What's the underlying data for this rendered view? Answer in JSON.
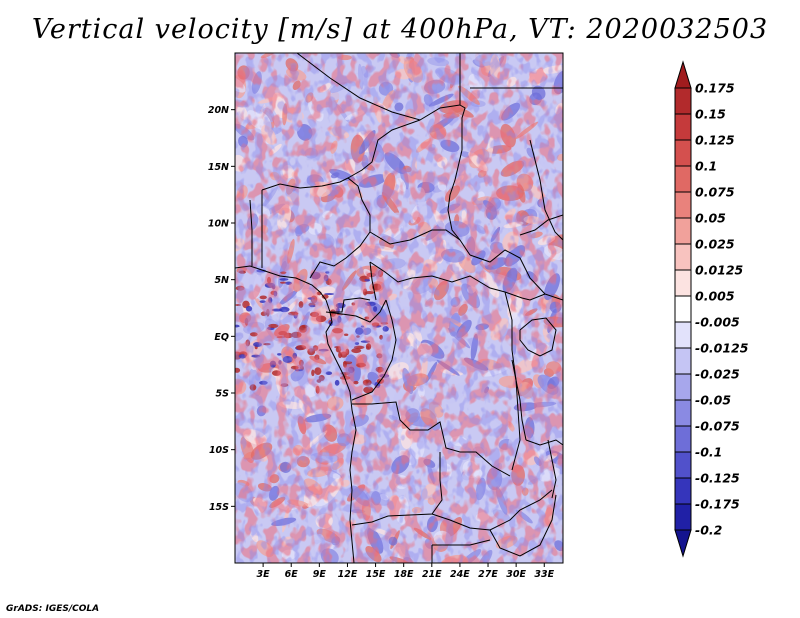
{
  "title": "Vertical velocity [m/s] at 400hPa, VT: 2020032503",
  "credit": "GrADS: IGES/COLA",
  "map": {
    "variable": "Vertical velocity",
    "units": "m/s",
    "level": "400hPa",
    "valid_time": "2020032503",
    "lon_range": [
      0,
      35
    ],
    "lat_range": [
      -20,
      25
    ],
    "lat_ticks": [
      {
        "value": 20,
        "label": "20N"
      },
      {
        "value": 15,
        "label": "15N"
      },
      {
        "value": 10,
        "label": "10N"
      },
      {
        "value": 5,
        "label": "5N"
      },
      {
        "value": 0,
        "label": "EQ"
      },
      {
        "value": -5,
        "label": "5S"
      },
      {
        "value": -10,
        "label": "10S"
      },
      {
        "value": -15,
        "label": "15S"
      }
    ],
    "lon_ticks": [
      {
        "value": 3,
        "label": "3E"
      },
      {
        "value": 6,
        "label": "6E"
      },
      {
        "value": 9,
        "label": "9E"
      },
      {
        "value": 12,
        "label": "12E"
      },
      {
        "value": 15,
        "label": "15E"
      },
      {
        "value": 18,
        "label": "18E"
      },
      {
        "value": 21,
        "label": "21E"
      },
      {
        "value": 24,
        "label": "24E"
      },
      {
        "value": 27,
        "label": "27E"
      },
      {
        "value": 30,
        "label": "30E"
      },
      {
        "value": 33,
        "label": "33E"
      }
    ]
  },
  "colorbar": {
    "levels": [
      "0.175",
      "0.15",
      "0.125",
      "0.1",
      "0.075",
      "0.05",
      "0.025",
      "0.0125",
      "0.005",
      "-0.005",
      "-0.0125",
      "-0.025",
      "-0.05",
      "-0.075",
      "-0.1",
      "-0.125",
      "-0.175",
      "-0.2"
    ],
    "colors": [
      "#a01c1e",
      "#b22a2c",
      "#c53a3b",
      "#d4504e",
      "#e06964",
      "#e9827c",
      "#f1a19b",
      "#f8c3bf",
      "#fce3e1",
      "#ffffff",
      "#e2e2fb",
      "#c5c5f4",
      "#a7a7ec",
      "#8a8ae3",
      "#6e6ed8",
      "#5151cb",
      "#3535bb",
      "#2020a6",
      "#14148f"
    ]
  }
}
